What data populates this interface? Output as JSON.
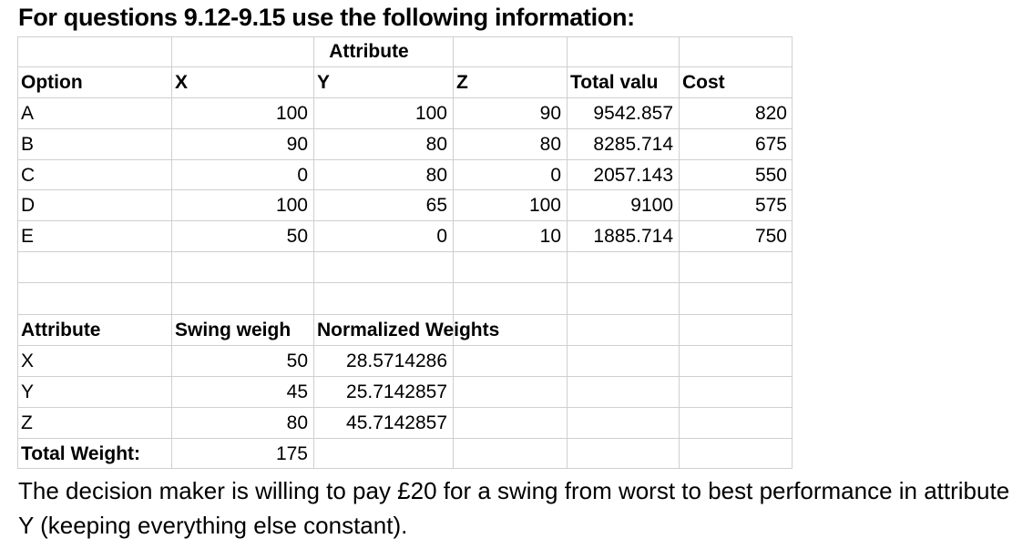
{
  "heading": "For questions 9.12-9.15 use the following information:",
  "attribute_header": "Attribute",
  "options_table": {
    "headers": [
      "Option",
      "X",
      "Y",
      "Z",
      "Total valu",
      "Cost"
    ],
    "rows": [
      [
        "A",
        "100",
        "100",
        "90",
        "9542.857",
        "820"
      ],
      [
        "B",
        "90",
        "80",
        "80",
        "8285.714",
        "675"
      ],
      [
        "C",
        "0",
        "80",
        "0",
        "2057.143",
        "550"
      ],
      [
        "D",
        "100",
        "65",
        "100",
        "9100",
        "575"
      ],
      [
        "E",
        "50",
        "0",
        "10",
        "1885.714",
        "750"
      ]
    ]
  },
  "weights_table": {
    "headers": [
      "Attribute",
      "Swing weigh",
      "Normalized Weights"
    ],
    "rows": [
      [
        "X",
        "50",
        "28.5714286"
      ],
      [
        "Y",
        "45",
        "25.7142857"
      ],
      [
        "Z",
        "80",
        "45.7142857"
      ]
    ],
    "total_label": "Total Weight:",
    "total_value": "175"
  },
  "statement": "The decision maker is willing to pay £20 for a swing from worst to best performance in attribute Y (keeping everything else constant)."
}
